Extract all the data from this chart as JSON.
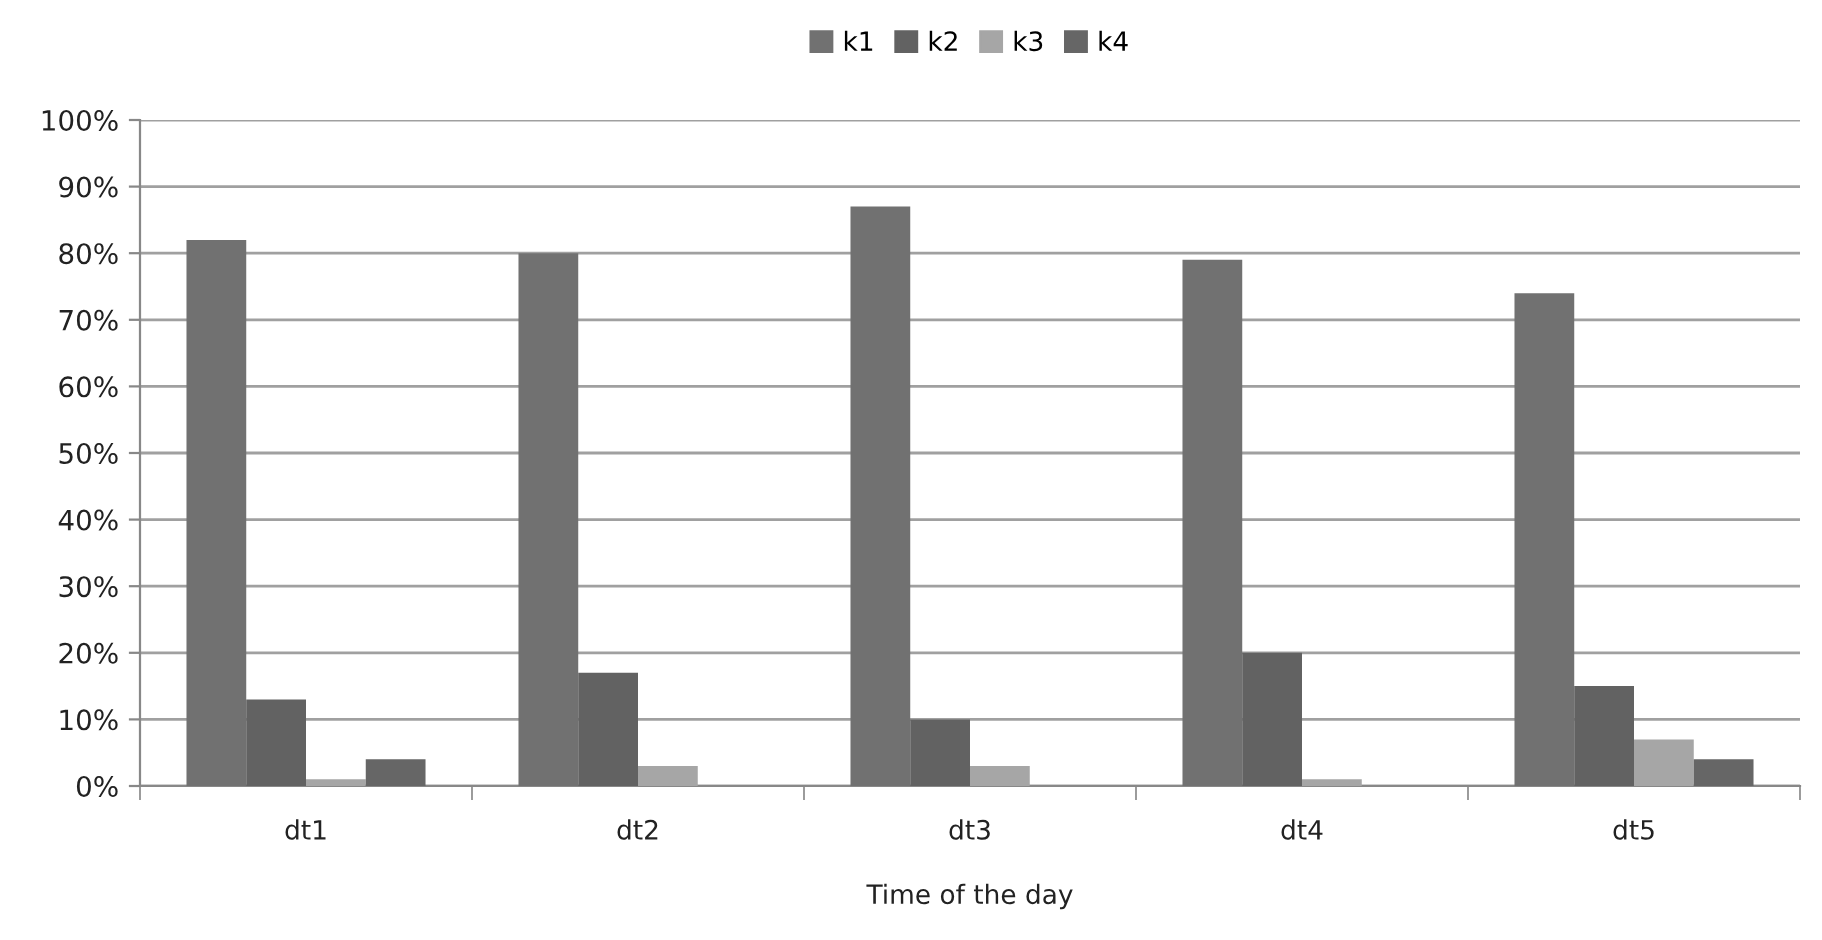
{
  "chart_data": {
    "type": "bar",
    "xlabel": "Time of the day",
    "categories": [
      "dt1",
      "dt2",
      "dt3",
      "dt4",
      "dt5"
    ],
    "series": [
      {
        "name": "k1",
        "color": "#717171",
        "values": [
          82,
          80,
          87,
          79,
          74
        ]
      },
      {
        "name": "k2",
        "color": "#626262",
        "values": [
          13,
          17,
          10,
          20,
          15
        ]
      },
      {
        "name": "k3",
        "color": "#a6a6a6",
        "values": [
          1,
          3,
          3,
          1,
          7
        ]
      },
      {
        "name": "k4",
        "color": "#666666",
        "values": [
          4,
          0,
          0,
          0,
          4
        ]
      }
    ],
    "ylim": [
      0,
      100
    ],
    "yticks": [
      {
        "value": 0,
        "label": "0%"
      },
      {
        "value": 10,
        "label": "10%"
      },
      {
        "value": 20,
        "label": "20%"
      },
      {
        "value": 30,
        "label": "30%"
      },
      {
        "value": 40,
        "label": "40%"
      },
      {
        "value": 50,
        "label": "50%"
      },
      {
        "value": 60,
        "label": "60%"
      },
      {
        "value": 70,
        "label": "70%"
      },
      {
        "value": 80,
        "label": "80%"
      },
      {
        "value": 90,
        "label": "90%"
      },
      {
        "value": 100,
        "label": "100%"
      }
    ],
    "grid": "y",
    "legend": "top"
  }
}
